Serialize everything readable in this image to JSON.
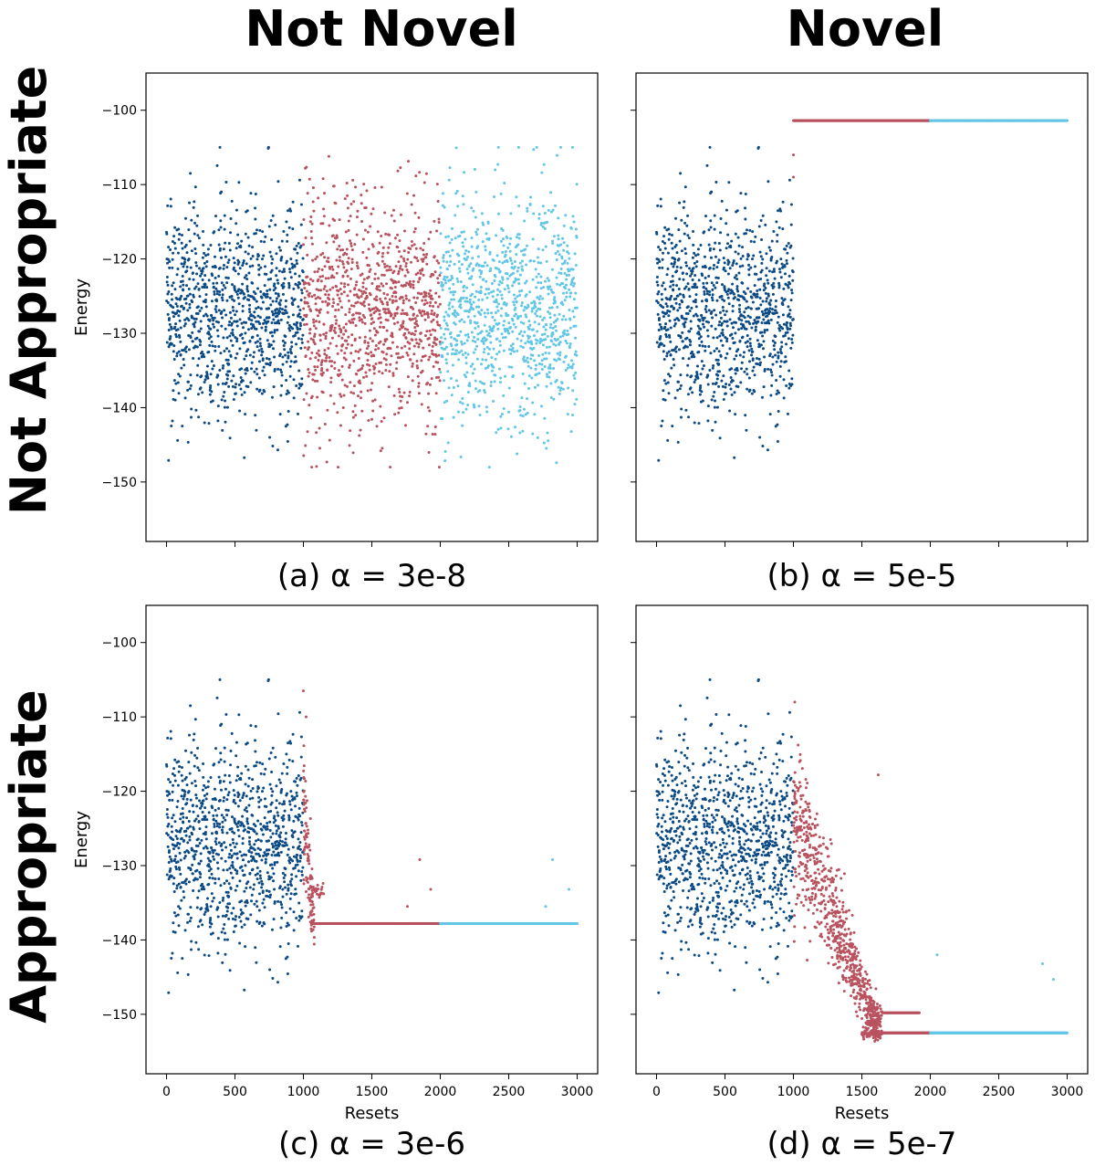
{
  "figure": {
    "col_headers": [
      "Not Novel",
      "Novel"
    ],
    "row_headers": [
      "Not Appropriate",
      "Appropriate"
    ],
    "colors": {
      "phase1": "#0b4a85",
      "phase2": "#b9525f",
      "phase3": "#62c6e6"
    }
  },
  "chart_data": [
    {
      "id": "a",
      "type": "scatter",
      "caption": "(a) α = 3e-8",
      "xlabel": "",
      "ylabel": "Energy",
      "xlim": [
        -150,
        3150
      ],
      "ylim": [
        -158,
        -95
      ],
      "xticks": [
        0,
        500,
        1000,
        1500,
        2000,
        2500,
        3000
      ],
      "yticks": [
        -100,
        -110,
        -120,
        -130,
        -140,
        -150
      ],
      "show_xticklabels": false,
      "show_yticklabels": true,
      "series": [
        {
          "name": "resets 0-1000",
          "color": "#0b4a85",
          "kind": "noise",
          "x_range": [
            0,
            1000
          ],
          "n": 1000,
          "center": -127,
          "sd": 7.5,
          "min": -148,
          "max": -105
        },
        {
          "name": "resets 1000-2000",
          "color": "#b9525f",
          "kind": "noise",
          "x_range": [
            1000,
            2000
          ],
          "n": 1000,
          "center": -127,
          "sd": 7.5,
          "min": -148,
          "max": -105
        },
        {
          "name": "resets 2000-3000",
          "color": "#62c6e6",
          "kind": "noise",
          "x_range": [
            2000,
            3000
          ],
          "n": 1000,
          "center": -127,
          "sd": 7.5,
          "min": -148,
          "max": -105
        }
      ]
    },
    {
      "id": "b",
      "type": "scatter",
      "caption": "(b) α = 5e-5",
      "xlabel": "",
      "ylabel": "",
      "xlim": [
        -150,
        3150
      ],
      "ylim": [
        -158,
        -95
      ],
      "xticks": [
        0,
        500,
        1000,
        1500,
        2000,
        2500,
        3000
      ],
      "yticks": [
        -100,
        -110,
        -120,
        -130,
        -140,
        -150
      ],
      "show_xticklabels": false,
      "show_yticklabels": false,
      "series": [
        {
          "name": "resets 0-1000",
          "color": "#0b4a85",
          "kind": "noise",
          "x_range": [
            0,
            1000
          ],
          "n": 1000,
          "center": -127,
          "sd": 7.5,
          "min": -148,
          "max": -105
        },
        {
          "name": "resets 1000-2000",
          "color": "#b9525f",
          "kind": "line",
          "x_range": [
            1000,
            2000
          ],
          "y": -101.4,
          "outliers": [
            [
              1000,
              -109
            ],
            [
              1000,
              -106
            ]
          ]
        },
        {
          "name": "resets 2000-3000",
          "color": "#62c6e6",
          "kind": "line",
          "x_range": [
            2000,
            3000
          ],
          "y": -101.4
        }
      ]
    },
    {
      "id": "c",
      "type": "scatter",
      "caption": "(c) α = 3e-6",
      "xlabel": "Resets",
      "ylabel": "Energy",
      "xlim": [
        -150,
        3150
      ],
      "ylim": [
        -158,
        -95
      ],
      "xticks": [
        0,
        500,
        1000,
        1500,
        2000,
        2500,
        3000
      ],
      "yticks": [
        -100,
        -110,
        -120,
        -130,
        -140,
        -150
      ],
      "show_xticklabels": true,
      "show_yticklabels": true,
      "series": [
        {
          "name": "resets 0-1000",
          "color": "#0b4a85",
          "kind": "noise",
          "x_range": [
            0,
            1000
          ],
          "n": 1000,
          "center": -127,
          "sd": 7.5,
          "min": -148,
          "max": -105
        },
        {
          "name": "resets 1000-2000",
          "color": "#b9525f",
          "kind": "converge",
          "x_range": [
            1000,
            2000
          ],
          "transition_end": 1080,
          "n_transition": 110,
          "y_start": -122,
          "plateaus": [
            -137.8,
            -133.5
          ],
          "outliers": [
            [
              1000,
              -106.5
            ],
            [
              1020,
              -110
            ],
            [
              1850,
              -129.2
            ],
            [
              1930,
              -133.2
            ],
            [
              1760,
              -135.5
            ]
          ]
        },
        {
          "name": "resets 2000-3000",
          "color": "#62c6e6",
          "kind": "line",
          "x_range": [
            2000,
            3000
          ],
          "y": -137.8,
          "outliers": [
            [
              2820,
              -129.2
            ],
            [
              2940,
              -133.2
            ],
            [
              2770,
              -135.5
            ]
          ]
        }
      ]
    },
    {
      "id": "d",
      "type": "scatter",
      "caption": "(d) α = 5e-7",
      "xlabel": "Resets",
      "ylabel": "",
      "xlim": [
        -150,
        3150
      ],
      "ylim": [
        -158,
        -95
      ],
      "xticks": [
        0,
        500,
        1000,
        1500,
        2000,
        2500,
        3000
      ],
      "yticks": [
        -100,
        -110,
        -120,
        -130,
        -140,
        -150
      ],
      "show_xticklabels": true,
      "show_yticklabels": false,
      "series": [
        {
          "name": "resets 0-1000",
          "color": "#0b4a85",
          "kind": "noise",
          "x_range": [
            0,
            1000
          ],
          "n": 1000,
          "center": -127,
          "sd": 7.5,
          "min": -148,
          "max": -105
        },
        {
          "name": "resets 1000-2000",
          "color": "#b9525f",
          "kind": "descend",
          "x_range": [
            1000,
            2000
          ],
          "trend_start": -124,
          "trend_end": -151.5,
          "descent_end": 1620,
          "plateaus": [
            -152.5,
            -149.8
          ],
          "outliers": [
            [
              1010,
              -108
            ],
            [
              1620,
              -117.8
            ]
          ]
        },
        {
          "name": "resets 2000-3000",
          "color": "#62c6e6",
          "kind": "line",
          "x_range": [
            2000,
            3000
          ],
          "y": -152.5,
          "outliers": [
            [
              2050,
              -142
            ],
            [
              2820,
              -143.2
            ],
            [
              2900,
              -145.3
            ]
          ]
        }
      ]
    }
  ]
}
